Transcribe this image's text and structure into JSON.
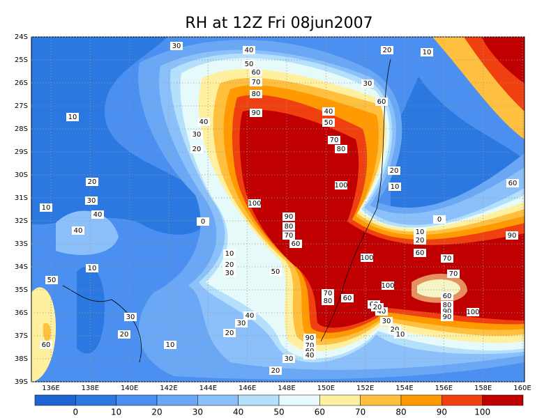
{
  "title": "RH at 12Z Fri 08jun2007",
  "map": {
    "lon_ticks": [
      "136E",
      "138E",
      "140E",
      "142E",
      "144E",
      "146E",
      "148E",
      "150E",
      "152E",
      "154E",
      "156E",
      "158E",
      "160E"
    ],
    "lat_ticks": [
      "24S",
      "25S",
      "26S",
      "27S",
      "28S",
      "29S",
      "30S",
      "31S",
      "32S",
      "33S",
      "34S",
      "35S",
      "36S",
      "37S",
      "38S",
      "39S"
    ],
    "contour_labels": [
      30,
      40,
      50,
      60,
      70,
      80,
      90,
      20,
      10,
      30,
      60,
      40,
      50,
      70,
      80,
      10,
      40,
      30,
      20,
      20,
      10,
      100,
      100,
      20,
      30,
      10,
      40,
      40,
      0,
      90,
      80,
      70,
      60,
      0,
      60,
      10,
      20,
      60,
      70,
      90,
      10,
      20,
      30,
      100,
      50,
      10,
      50,
      70,
      100,
      70,
      80,
      60,
      60,
      40,
      20,
      60,
      80,
      90,
      90,
      100,
      40,
      30,
      30,
      20,
      20,
      30,
      20,
      10,
      90,
      70,
      60,
      40,
      30,
      20,
      10,
      60
    ]
  },
  "colorbar": {
    "labels": [
      0,
      10,
      20,
      30,
      40,
      50,
      60,
      70,
      80,
      90,
      100
    ],
    "colors": [
      "#1e64d2",
      "#2a78e0",
      "#4b90f0",
      "#6aa8f5",
      "#8cc0fa",
      "#b4e0fc",
      "#e6fafa",
      "#fff0a0",
      "#ffc040",
      "#ff9a00",
      "#f04010",
      "#c00000"
    ]
  }
}
